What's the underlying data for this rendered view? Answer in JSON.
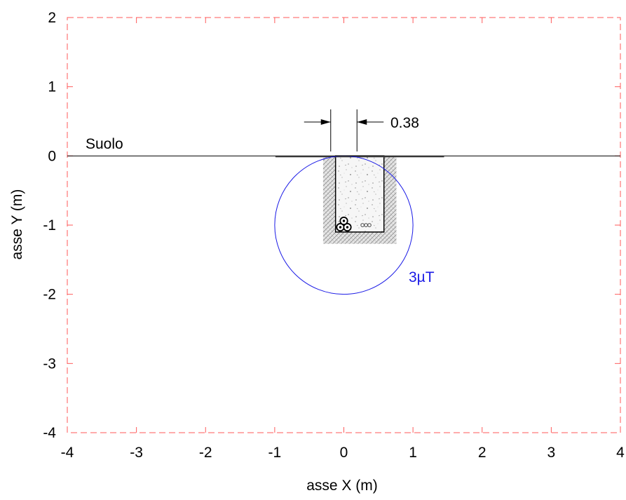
{
  "chart_data": {
    "type": "diagram",
    "xlabel": "asse X (m)",
    "ylabel": "asse Y (m)",
    "xlim": [
      -4,
      4
    ],
    "ylim": [
      -4,
      2
    ],
    "xticks": [
      "-4",
      "-3",
      "-2",
      "-1",
      "0",
      "1",
      "2",
      "3",
      "4"
    ],
    "yticks": [
      "2",
      "1",
      "0",
      "-1",
      "-2",
      "-3",
      "-4"
    ],
    "grid": true,
    "ground": {
      "label": "Suolo",
      "y": 0
    },
    "dimension": {
      "label": "0.38",
      "from_x": -0.19,
      "to_x": 0.19
    },
    "contour": {
      "label": "3µT",
      "center": [
        0,
        -1
      ],
      "radius": 1.0,
      "color": "#1a1ae6"
    },
    "trench": {
      "x_min": -0.12,
      "x_max": 0.58,
      "y_bottom": -1.1
    },
    "colors": {
      "grid": "#ff5a5a",
      "contour": "#1a1ae6",
      "line": "#000000"
    }
  }
}
